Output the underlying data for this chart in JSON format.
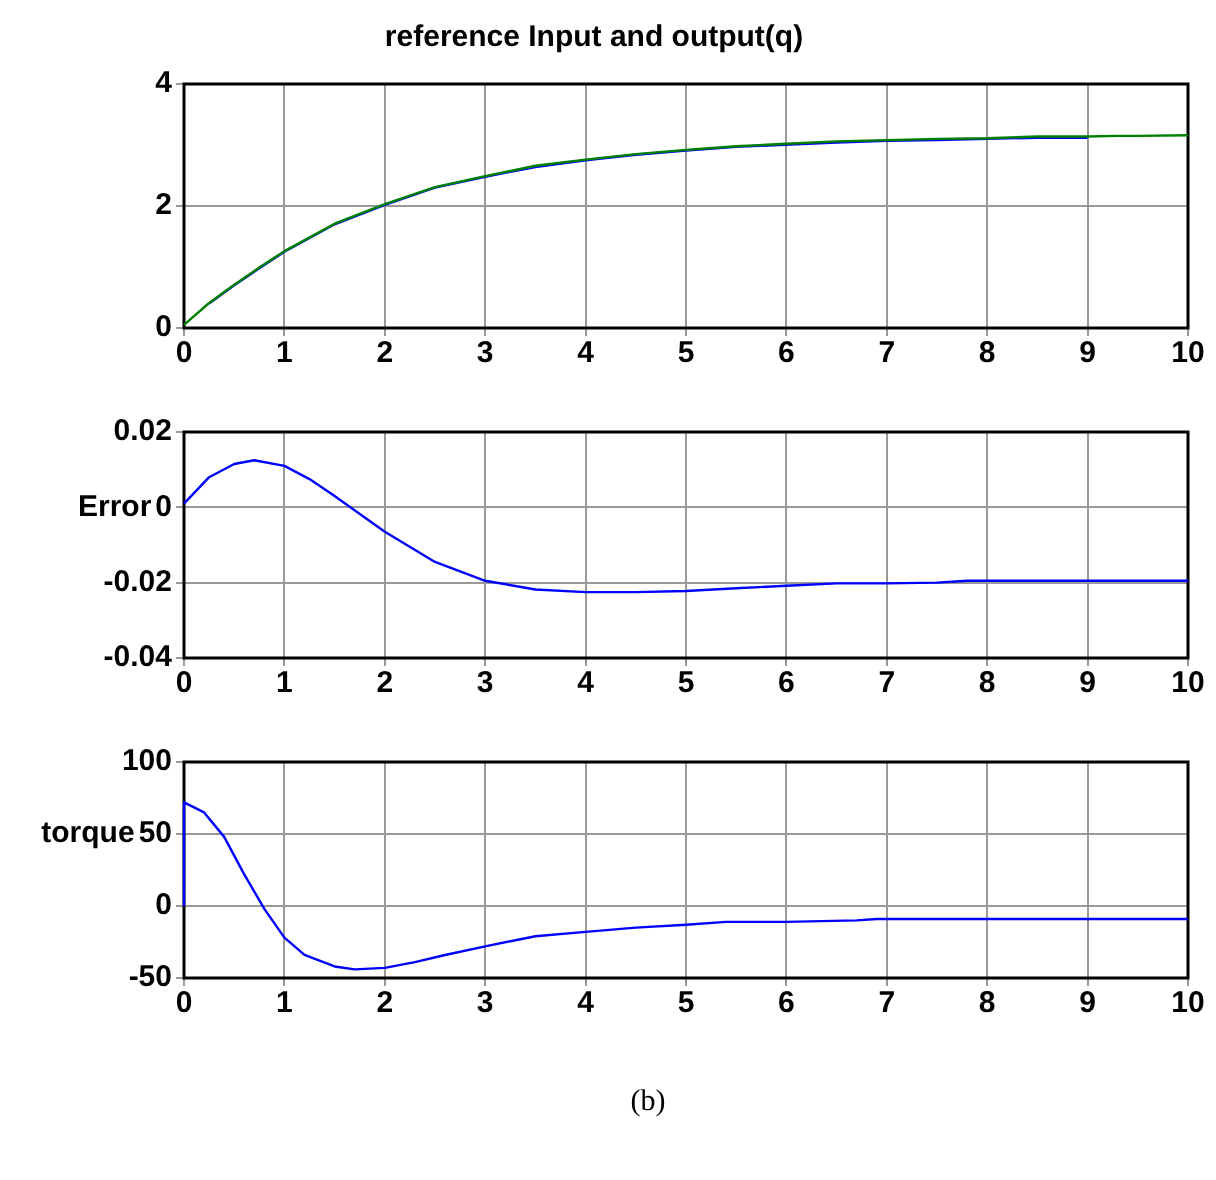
{
  "chart_data": [
    {
      "type": "line",
      "title": "reference Input and output(q)",
      "xlim": [
        0,
        10
      ],
      "xticks": [
        0,
        1,
        2,
        3,
        4,
        5,
        6,
        7,
        8,
        9,
        10
      ],
      "ylim": [
        0,
        4
      ],
      "yticks": [
        0,
        2,
        4
      ],
      "grid": true,
      "series": [
        {
          "color": "#008000",
          "x": [
            0,
            0.25,
            0.5,
            0.75,
            1,
            1.5,
            2,
            2.5,
            3,
            3.5,
            4,
            4.5,
            5,
            5.5,
            6,
            6.5,
            7,
            7.5,
            8,
            8.5,
            9,
            9.3,
            9.5,
            10
          ],
          "values": [
            0.05,
            0.41,
            0.71,
            0.99,
            1.26,
            1.71,
            2.03,
            2.31,
            2.49,
            2.66,
            2.76,
            2.85,
            2.92,
            2.98,
            3.02,
            3.06,
            3.08,
            3.1,
            3.11,
            3.14,
            3.14,
            3.15,
            3.15,
            3.16
          ]
        },
        {
          "color": "#0000ff",
          "x": [
            0.25,
            0.5,
            0.75,
            1,
            1.5,
            2,
            2.5,
            3,
            3.5,
            4,
            4.5,
            5,
            5.5,
            6,
            6.5,
            7,
            7.5,
            8,
            8.5,
            9
          ],
          "values": [
            0.4,
            0.7,
            0.98,
            1.25,
            1.7,
            2.02,
            2.3,
            2.48,
            2.64,
            2.75,
            2.84,
            2.91,
            2.97,
            null,
            3.04,
            3.07,
            3.08,
            null,
            3.12,
            3.12
          ]
        }
      ]
    },
    {
      "type": "line",
      "ylabel": "Error",
      "xlim": [
        0,
        10
      ],
      "xticks": [
        0,
        1,
        2,
        3,
        4,
        5,
        6,
        7,
        8,
        9,
        10
      ],
      "ylim": [
        -0.04,
        0.02
      ],
      "yticks": [
        -0.04,
        -0.02,
        0,
        0.02
      ],
      "grid": true,
      "series": [
        {
          "color": "#0000ff",
          "x": [
            0,
            0.25,
            0.5,
            0.7,
            1,
            1.25,
            1.5,
            2,
            2.5,
            3,
            3.5,
            4,
            4.5,
            5,
            5.5,
            6,
            6.5,
            7,
            7.5,
            7.8,
            8,
            9,
            10
          ],
          "values": [
            0.001,
            0.008,
            0.0115,
            0.0125,
            0.011,
            0.0075,
            0.003,
            -0.0065,
            -0.0145,
            -0.0195,
            -0.0218,
            -0.0225,
            -0.0225,
            -0.0222,
            -0.0215,
            -0.0208,
            -0.0202,
            -0.0202,
            -0.02,
            -0.0195,
            -0.0195,
            -0.0195,
            -0.0195
          ]
        }
      ]
    },
    {
      "type": "line",
      "ylabel": "torque",
      "xlim": [
        0,
        10
      ],
      "xticks": [
        0,
        1,
        2,
        3,
        4,
        5,
        6,
        7,
        8,
        9,
        10
      ],
      "ylim": [
        -50,
        100
      ],
      "yticks": [
        -50,
        0,
        50,
        100
      ],
      "grid": true,
      "annotations": [
        "(b)"
      ],
      "series": [
        {
          "color": "#0000ff",
          "x": [
            0,
            0,
            0.2,
            0.4,
            0.6,
            0.8,
            1,
            1.2,
            1.5,
            1.7,
            2,
            2.3,
            2.6,
            3,
            3.5,
            4,
            4.5,
            5,
            5.4,
            6,
            6.7,
            6.9,
            8,
            10
          ],
          "values": [
            0,
            72,
            65,
            48,
            22,
            -2,
            -22,
            -34,
            -42,
            -44,
            -43,
            -39,
            -34,
            -28,
            -21,
            -18,
            -15,
            -13,
            -11,
            -11,
            -10,
            -9,
            -9,
            -9
          ]
        }
      ]
    }
  ]
}
